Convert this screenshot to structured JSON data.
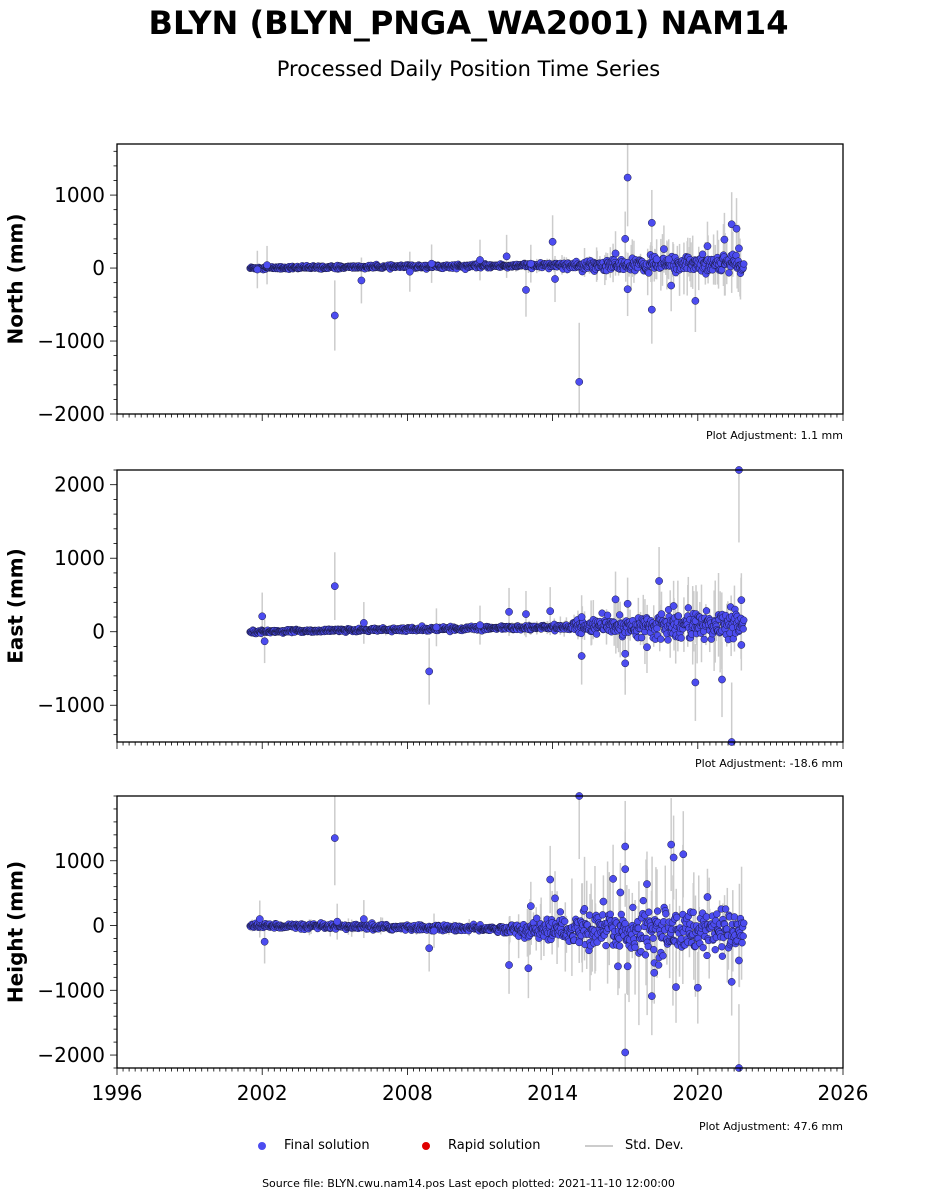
{
  "title": "BLYN (BLYN_PNGA_WA2001) NAM14",
  "subtitle": "Processed Daily Position Time Series",
  "colors": {
    "final": "#4c4cf0",
    "final_edge": "#1a1a40",
    "rapid": "#e00000",
    "stddev": "#cccccc"
  },
  "legend": {
    "final_label": "Final solution",
    "rapid_label": "Rapid solution",
    "stddev_label": "Std. Dev."
  },
  "footer": "Source file: BLYN.cwu.nam14.pos  Last epoch plotted: 2021-11-10 12:00:00",
  "chart_data": [
    {
      "type": "scatter",
      "ylabel": "North (mm)",
      "xlim": [
        1996,
        2026
      ],
      "ylim": [
        -2000,
        1700
      ],
      "xticks": [
        1996,
        2002,
        2008,
        2014,
        2020,
        2026
      ],
      "yticks": [
        -2000,
        -1000,
        0,
        1000
      ],
      "adjustment": "Plot Adjustment: 1.1 mm",
      "trend": [
        [
          2001.5,
          0
        ],
        [
          2021.9,
          60
        ]
      ],
      "scatter_level": [
        [
          2001.5,
          15
        ],
        [
          2014,
          25
        ],
        [
          2016,
          70
        ],
        [
          2021.9,
          120
        ]
      ],
      "outliers": [
        [
          2001.8,
          -20
        ],
        [
          2002.2,
          40
        ],
        [
          2005.0,
          -650
        ],
        [
          2006.1,
          -170
        ],
        [
          2008.1,
          -50
        ],
        [
          2009.0,
          60
        ],
        [
          2011.0,
          110
        ],
        [
          2012.1,
          160
        ],
        [
          2012.9,
          -300
        ],
        [
          2013.1,
          60
        ],
        [
          2014.0,
          360
        ],
        [
          2014.1,
          -150
        ],
        [
          2015.1,
          -1560
        ],
        [
          2016.6,
          200
        ],
        [
          2017.1,
          1240
        ],
        [
          2017.0,
          400
        ],
        [
          2017.1,
          -290
        ],
        [
          2018.1,
          620
        ],
        [
          2018.1,
          -570
        ],
        [
          2018.3,
          120
        ],
        [
          2018.6,
          260
        ],
        [
          2018.8,
          120
        ],
        [
          2018.9,
          -240
        ],
        [
          2019.9,
          -450
        ],
        [
          2020.4,
          300
        ],
        [
          2021.1,
          390
        ],
        [
          2021.4,
          600
        ],
        [
          2021.6,
          540
        ],
        [
          2021.7,
          270
        ]
      ]
    },
    {
      "type": "scatter",
      "ylabel": "East (mm)",
      "xlim": [
        1996,
        2026
      ],
      "ylim": [
        -1500,
        2200
      ],
      "xticks": [
        1996,
        2002,
        2008,
        2014,
        2020,
        2026
      ],
      "yticks": [
        -1000,
        0,
        1000,
        2000
      ],
      "adjustment": "Plot Adjustment: -18.6 mm",
      "trend": [
        [
          2001.5,
          0
        ],
        [
          2021.9,
          100
        ]
      ],
      "scatter_level": [
        [
          2001.5,
          15
        ],
        [
          2014,
          25
        ],
        [
          2016,
          90
        ],
        [
          2021.9,
          160
        ]
      ],
      "outliers": [
        [
          2002.0,
          210
        ],
        [
          2002.1,
          -130
        ],
        [
          2005.0,
          620
        ],
        [
          2006.2,
          120
        ],
        [
          2008.9,
          -540
        ],
        [
          2009.2,
          60
        ],
        [
          2011.0,
          90
        ],
        [
          2012.2,
          270
        ],
        [
          2012.9,
          240
        ],
        [
          2013.9,
          280
        ],
        [
          2015.2,
          -330
        ],
        [
          2015.2,
          200
        ],
        [
          2016.6,
          440
        ],
        [
          2017.0,
          -300
        ],
        [
          2017.0,
          -430
        ],
        [
          2017.1,
          380
        ],
        [
          2017.9,
          -210
        ],
        [
          2018.4,
          690
        ],
        [
          2018.5,
          240
        ],
        [
          2019.0,
          350
        ],
        [
          2019.9,
          -690
        ],
        [
          2021.0,
          -650
        ],
        [
          2021.4,
          -1500
        ],
        [
          2021.7,
          2200
        ],
        [
          2021.8,
          430
        ],
        [
          2021.8,
          -180
        ]
      ]
    },
    {
      "type": "scatter",
      "ylabel": "Height (mm)",
      "xlim": [
        1996,
        2026
      ],
      "ylim": [
        -2200,
        2000
      ],
      "xticks": [
        1996,
        2002,
        2008,
        2014,
        2020,
        2026
      ],
      "yticks": [
        -2000,
        -1000,
        0,
        1000
      ],
      "adjustment": "Plot Adjustment: 47.6 mm",
      "trend": [
        [
          2001.5,
          0
        ],
        [
          2021.9,
          -100
        ]
      ],
      "scatter_level": [
        [
          2001.5,
          30
        ],
        [
          2012,
          40
        ],
        [
          2013,
          120
        ],
        [
          2016,
          250
        ],
        [
          2018,
          300
        ],
        [
          2021.9,
          220
        ]
      ],
      "outliers": [
        [
          2001.9,
          100
        ],
        [
          2002.1,
          -250
        ],
        [
          2005.0,
          1350
        ],
        [
          2005.1,
          60
        ],
        [
          2006.2,
          100
        ],
        [
          2008.9,
          -350
        ],
        [
          2009.1,
          -80
        ],
        [
          2012.2,
          -610
        ],
        [
          2013.0,
          -660
        ],
        [
          2013.1,
          300
        ],
        [
          2013.9,
          710
        ],
        [
          2014.1,
          420
        ],
        [
          2015.1,
          2000
        ],
        [
          2015.1,
          -260
        ],
        [
          2016.1,
          370
        ],
        [
          2016.5,
          720
        ],
        [
          2016.7,
          -630
        ],
        [
          2016.8,
          510
        ],
        [
          2017.0,
          1220
        ],
        [
          2017.0,
          870
        ],
        [
          2017.0,
          -1960
        ],
        [
          2017.1,
          -630
        ],
        [
          2017.9,
          640
        ],
        [
          2018.1,
          -1090
        ],
        [
          2018.2,
          -730
        ],
        [
          2018.9,
          1250
        ],
        [
          2019.0,
          1050
        ],
        [
          2019.1,
          -950
        ],
        [
          2019.4,
          1100
        ],
        [
          2020.0,
          -960
        ],
        [
          2020.4,
          440
        ],
        [
          2021.4,
          -870
        ],
        [
          2021.7,
          -2200
        ],
        [
          2021.7,
          -540
        ]
      ]
    }
  ]
}
